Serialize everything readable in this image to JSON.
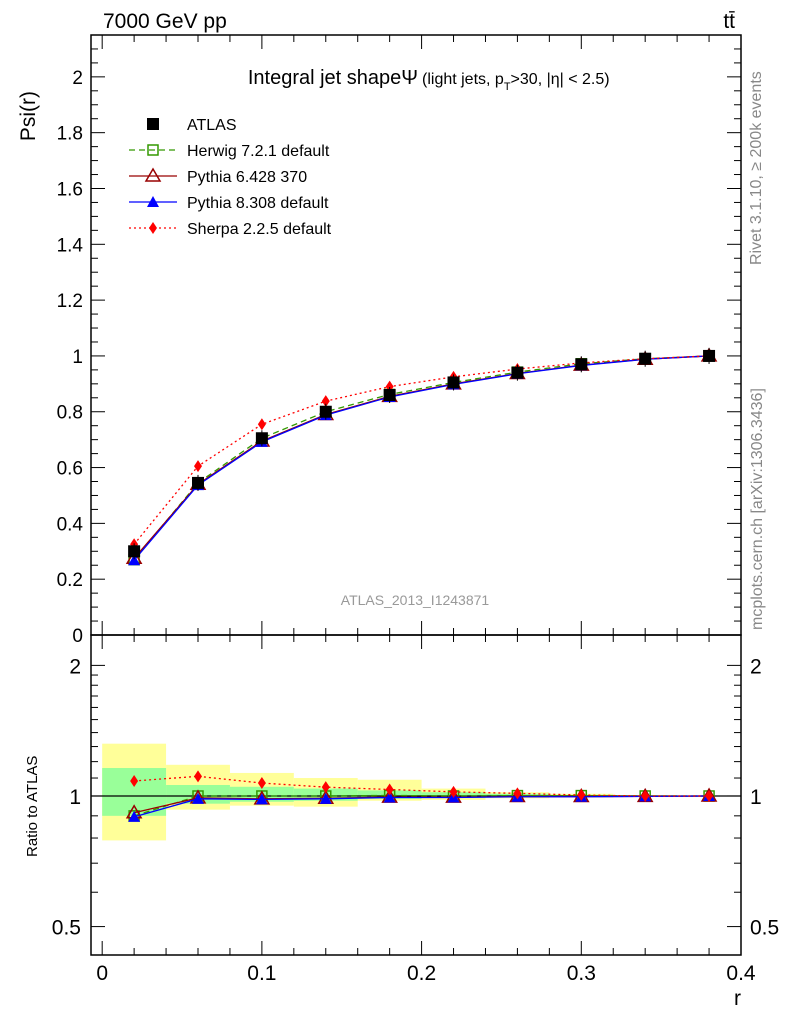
{
  "header": {
    "left": "7000 GeV pp",
    "right": "tt̄"
  },
  "side_labels": {
    "rivet": "Rivet 3.1.10, ≥ 200k events",
    "mcplots": "mcplots.cern.ch [arXiv:1306.3436]"
  },
  "watermark": "ATLAS_2013_I1243871",
  "colors": {
    "atlas": "#000000",
    "herwig": "#339900",
    "pythia6": "#990000",
    "pythia8": "#0000ff",
    "sherpa": "#ff0000",
    "band_inner": "#99ff99",
    "band_outer": "#ffff99"
  },
  "chart_data": [
    {
      "panel": "main",
      "type": "line",
      "title_main": "Integral jet shapeΨ",
      "title_sub": "(light jets, p",
      "title_sub_sub": "T",
      "title_sub_rest": ">30, |η| < 2.5)",
      "ylabel": "Psi(r)",
      "xlim": [
        -0.007,
        0.4
      ],
      "ylim": [
        0,
        2.15
      ],
      "yticks": [
        0,
        0.2,
        0.4,
        0.6,
        0.8,
        1,
        1.2,
        1.4,
        1.6,
        1.8,
        2
      ],
      "ytick_labels": [
        "0",
        "0.2",
        "0.4",
        "0.6",
        "0.8",
        "1",
        "1.2",
        "1.4",
        "1.6",
        "1.8",
        "2"
      ],
      "legend_position": "top-left",
      "x": [
        0.02,
        0.06,
        0.1,
        0.14,
        0.18,
        0.22,
        0.26,
        0.3,
        0.34,
        0.38
      ],
      "series": [
        {
          "name": "ATLAS",
          "key": "atlas",
          "values": [
            0.3,
            0.545,
            0.705,
            0.8,
            0.86,
            0.905,
            0.94,
            0.97,
            0.99,
            1.0
          ]
        },
        {
          "name": "Herwig 7.2.1 default",
          "key": "herwig",
          "values": [
            0.27,
            0.545,
            0.705,
            0.8,
            0.862,
            0.905,
            0.942,
            0.972,
            0.99,
            1.0
          ]
        },
        {
          "name": "Pythia 6.428 370",
          "key": "pythia6",
          "values": [
            0.275,
            0.54,
            0.695,
            0.79,
            0.855,
            0.9,
            0.937,
            0.967,
            0.988,
            1.0
          ]
        },
        {
          "name": "Pythia 8.308 default",
          "key": "pythia8",
          "values": [
            0.268,
            0.537,
            0.692,
            0.788,
            0.853,
            0.898,
            0.936,
            0.966,
            0.988,
            1.0
          ]
        },
        {
          "name": "Sherpa 2.2.5 default",
          "key": "sherpa",
          "values": [
            0.325,
            0.605,
            0.755,
            0.838,
            0.89,
            0.925,
            0.953,
            0.975,
            0.99,
            1.0
          ]
        }
      ]
    },
    {
      "panel": "ratio",
      "type": "line",
      "ylabel": "Ratio to ATLAS",
      "xlabel": "r",
      "xlim": [
        -0.007,
        0.4
      ],
      "ylim": [
        0.43,
        2.35
      ],
      "yscale": "log",
      "yticks": [
        0.5,
        1,
        2
      ],
      "ytick_labels": [
        "0.5",
        "1",
        "2"
      ],
      "xticks": [
        0,
        0.1,
        0.2,
        0.3,
        0.4
      ],
      "xtick_labels": [
        "0",
        "0.1",
        "0.2",
        "0.3",
        "0.4"
      ],
      "x": [
        0.02,
        0.06,
        0.1,
        0.14,
        0.18,
        0.22,
        0.26,
        0.3,
        0.34,
        0.38
      ],
      "bands": {
        "edges": [
          0,
          0.04,
          0.08,
          0.12,
          0.16,
          0.2,
          0.24,
          0.28,
          0.32,
          0.36,
          0.4
        ],
        "inner_lo": [
          0.9,
          0.96,
          0.97,
          0.975,
          0.985,
          0.99,
          0.993,
          0.995,
          0.998,
          1.0
        ],
        "inner_hi": [
          1.16,
          1.06,
          1.05,
          1.04,
          1.03,
          1.02,
          1.012,
          1.006,
          1.003,
          1.0
        ],
        "outer_lo": [
          0.79,
          0.93,
          0.95,
          0.945,
          0.975,
          0.98,
          0.988,
          0.992,
          0.997,
          1.0
        ],
        "outer_hi": [
          1.32,
          1.18,
          1.13,
          1.1,
          1.09,
          1.04,
          1.02,
          1.012,
          1.005,
          1.0
        ]
      },
      "series": [
        {
          "name": "Herwig 7.2.1 default",
          "key": "herwig",
          "values": [
            0.9,
            1.0,
            1.0,
            1.0,
            1.003,
            1.0,
            1.002,
            1.002,
            1.0,
            1.0
          ]
        },
        {
          "name": "Pythia 6.428 370",
          "key": "pythia6",
          "values": [
            0.915,
            0.99,
            0.985,
            0.988,
            0.994,
            0.994,
            0.997,
            0.997,
            0.998,
            1.0
          ]
        },
        {
          "name": "Pythia 8.308 default",
          "key": "pythia8",
          "values": [
            0.895,
            0.985,
            0.982,
            0.985,
            0.992,
            0.992,
            0.996,
            0.996,
            0.998,
            1.0
          ]
        },
        {
          "name": "Sherpa 2.2.5 default",
          "key": "sherpa",
          "values": [
            1.083,
            1.11,
            1.071,
            1.048,
            1.035,
            1.022,
            1.014,
            1.005,
            1.0,
            1.0
          ]
        }
      ]
    }
  ]
}
